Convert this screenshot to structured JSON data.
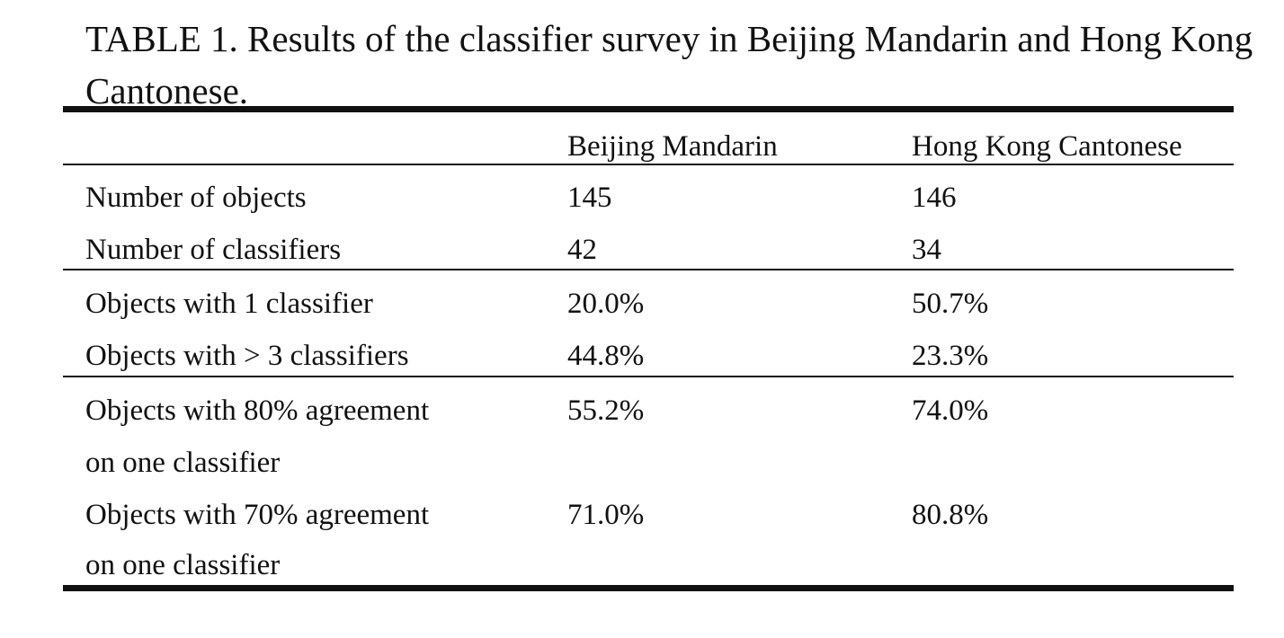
{
  "caption": "TABLE 1. Results of the classifier survey in Beijing Mandarin and Hong Kong Cantonese.",
  "table": {
    "columns": [
      "",
      "Beijing Mandarin",
      "Hong Kong Cantonese"
    ],
    "rows": [
      [
        "Number of objects",
        "145",
        "146"
      ],
      [
        "Number of classifiers",
        "42",
        "34"
      ],
      [
        "Objects with 1 classifier",
        "20.0%",
        "50.7%"
      ],
      [
        "Objects with > 3 classifiers",
        "44.8%",
        "23.3%"
      ],
      [
        "Objects with 80% agreement",
        "55.2%",
        "74.0%"
      ],
      [
        "on one classifier",
        "",
        ""
      ],
      [
        "Objects with 70% agreement",
        "71.0%",
        "80.8%"
      ],
      [
        "on one classifier",
        "",
        ""
      ]
    ]
  }
}
